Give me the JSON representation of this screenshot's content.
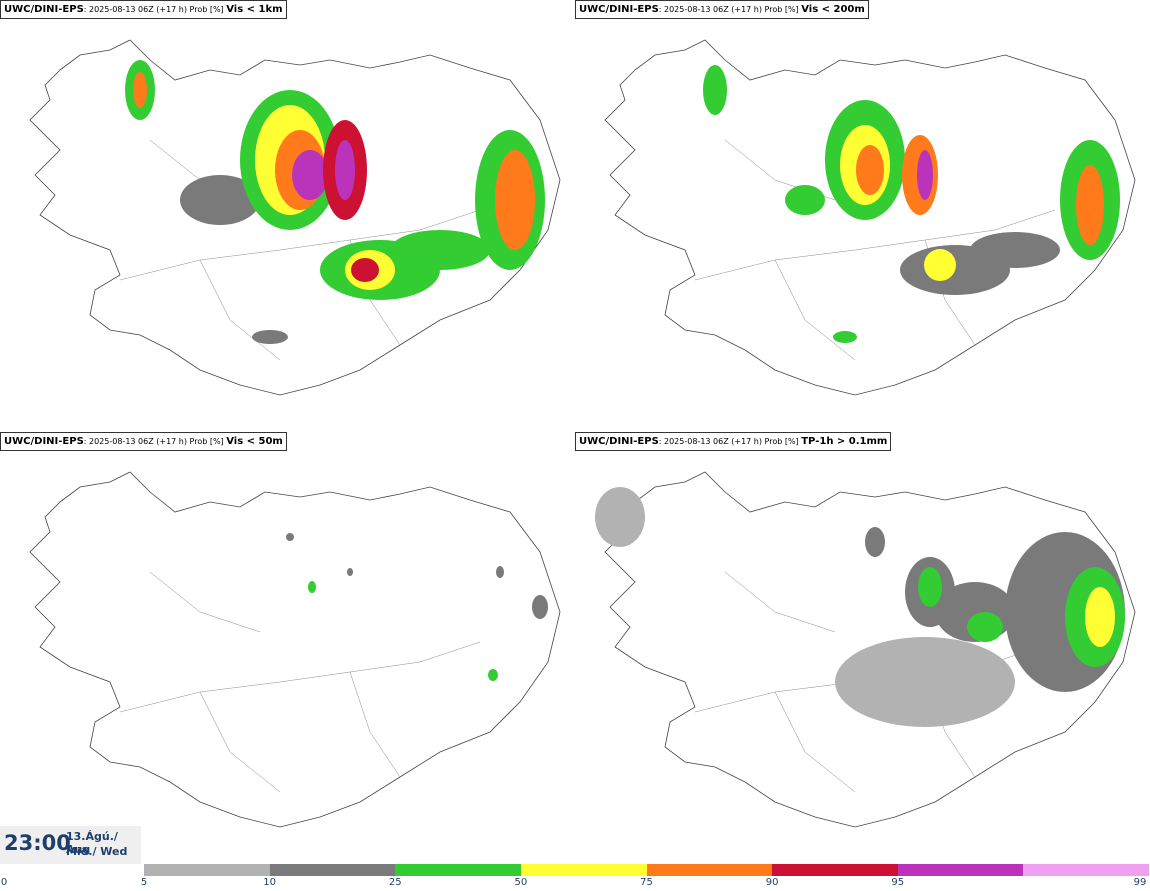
{
  "panels": [
    {
      "source": "UWC/DINI-EPS",
      "meta": ": 2025-08-13 06Z (+17 h) Prob [%] ",
      "variable": "Vis < 1km"
    },
    {
      "source": "UWC/DINI-EPS",
      "meta": ": 2025-08-13 06Z (+17 h) Prob [%] ",
      "variable": "Vis < 200m"
    },
    {
      "source": "UWC/DINI-EPS",
      "meta": ": 2025-08-13 06Z (+17 h) Prob [%] ",
      "variable": "Vis < 50m"
    },
    {
      "source": "UWC/DINI-EPS",
      "meta": ": 2025-08-13 06Z (+17 h) Prob [%] ",
      "variable": "TP-1h > 0.1mm"
    }
  ],
  "time": {
    "clock": "23:00",
    "date_line": "13.Ágú./ Aug",
    "day_line": "Mið./ Wed"
  },
  "legend": {
    "ticks": [
      "0",
      "5",
      "10",
      "25",
      "50",
      "75",
      "90",
      "95",
      "99"
    ],
    "colors": [
      "#b2b2b2",
      "#7a7a7a",
      "#33cc33",
      "#ffff33",
      "#ff7a1a",
      "#cc1133",
      "#bb33bb",
      "#f0a0f0"
    ]
  }
}
